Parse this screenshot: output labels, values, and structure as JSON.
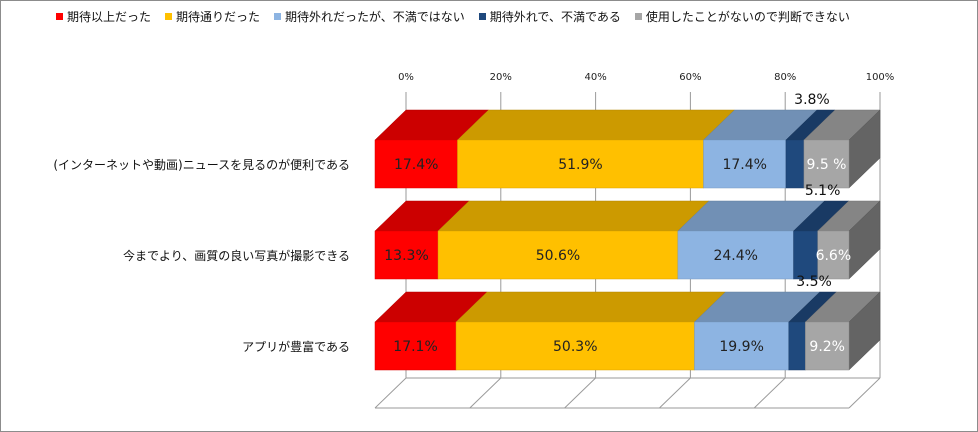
{
  "chart_data": {
    "type": "bar",
    "orientation": "horizontal",
    "stacked": "percent",
    "three_d": true,
    "legend_position": "top",
    "xlim": [
      0,
      100
    ],
    "x_ticks": [
      "0%",
      "20%",
      "40%",
      "60%",
      "80%",
      "100%"
    ],
    "categories": [
      "(インターネットや動画)ニュースを見るのが便利である",
      "今までより、画質の良い写真が撮影できる",
      "アプリが豊富である"
    ],
    "series": [
      {
        "name": "期待以上だった",
        "color": "#ff0000",
        "label_color": "#222222",
        "values": [
          17.4,
          13.3,
          17.1
        ],
        "labels": [
          "17.4%",
          "13.3%",
          "17.1%"
        ]
      },
      {
        "name": "期待通りだった",
        "color": "#ffc000",
        "label_color": "#222222",
        "values": [
          51.9,
          50.6,
          50.3
        ],
        "labels": [
          "51.9%",
          "50.6%",
          "50.3%"
        ]
      },
      {
        "name": "期待外れだったが、不満ではない",
        "color": "#8db4e2",
        "label_color": "#222222",
        "values": [
          17.4,
          24.4,
          19.9
        ],
        "labels": [
          "17.4%",
          "24.4%",
          "19.9%"
        ]
      },
      {
        "name": "期待外れで、不満である",
        "color": "#1f497d",
        "label_color": "#111111",
        "values": [
          3.8,
          5.1,
          3.5
        ],
        "labels": [
          "3.8%",
          "5.1%",
          "3.5%"
        ]
      },
      {
        "name": "使用したことがないので判断できない",
        "color": "#a6a6a6",
        "label_color": "#ffffff",
        "values": [
          9.5,
          6.6,
          9.2
        ],
        "labels": [
          "9.5 %",
          "6.6%",
          "9.2%"
        ]
      }
    ]
  }
}
